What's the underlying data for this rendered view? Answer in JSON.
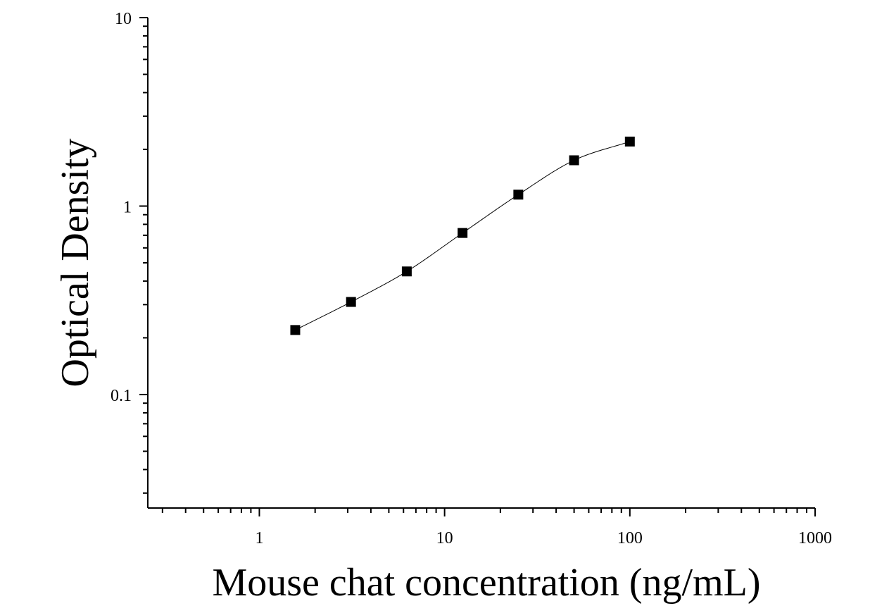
{
  "chart_data": {
    "type": "scatter",
    "title": "",
    "xlabel": "Mouse chat concentration (ng/mL)",
    "ylabel": "Optical Density",
    "x_scale": "log",
    "y_scale": "log",
    "xlim": [
      0.25,
      1000
    ],
    "ylim": [
      0.025,
      10
    ],
    "x_ticks": [
      {
        "value": 1,
        "label": "1"
      },
      {
        "value": 10,
        "label": "10"
      },
      {
        "value": 100,
        "label": "100"
      },
      {
        "value": 1000,
        "label": "1000"
      }
    ],
    "y_ticks": [
      {
        "value": 0.1,
        "label": "0.1"
      },
      {
        "value": 1,
        "label": "1"
      },
      {
        "value": 10,
        "label": "10"
      }
    ],
    "grid": false,
    "legend": false,
    "marker": "square",
    "series": [
      {
        "x": [
          1.5625,
          3.125,
          6.25,
          12.5,
          25,
          50,
          100
        ],
        "y": [
          0.22,
          0.31,
          0.45,
          0.72,
          1.15,
          1.75,
          2.2
        ]
      }
    ],
    "fit_curve": "4PL",
    "colors": {
      "axis": "#000000",
      "marker": "#000000",
      "curve": "#000000"
    }
  }
}
